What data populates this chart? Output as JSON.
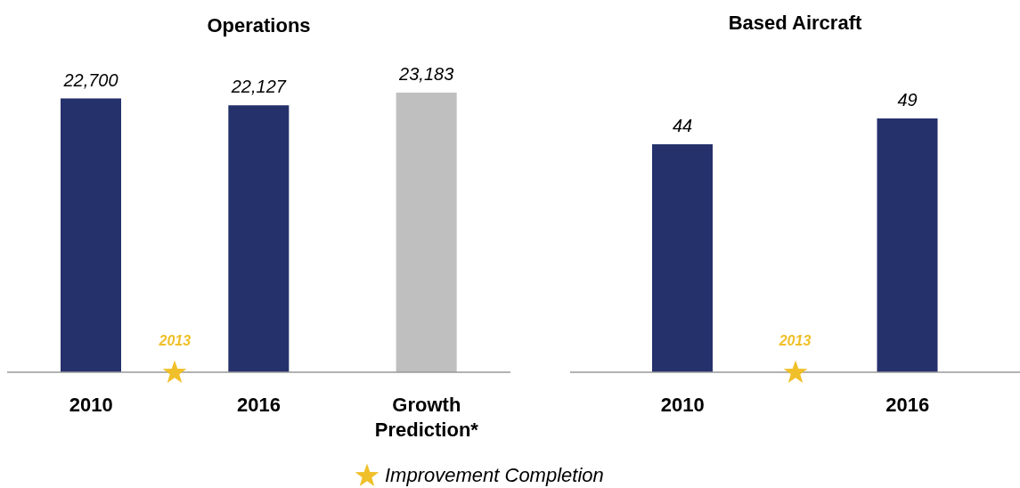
{
  "chart_data": [
    {
      "type": "bar",
      "title": "Operations",
      "categories": [
        "2010",
        "2016",
        "Growth Prediction*"
      ],
      "values": [
        22700,
        22127,
        23183
      ],
      "colors": [
        "#25316b",
        "#25316b",
        "#bfbfbf"
      ],
      "value_labels": [
        "22,700",
        "22,127",
        "23,183"
      ],
      "annotations": [
        "2013",
        "Improvement Completion"
      ]
    },
    {
      "type": "bar",
      "title": "Based Aircraft",
      "categories": [
        "2010",
        "2016"
      ],
      "values": [
        44,
        49
      ],
      "colors": [
        "#25316b",
        "#25316b"
      ],
      "data_labels": true,
      "annotations": [
        "2013"
      ]
    }
  ]
}
